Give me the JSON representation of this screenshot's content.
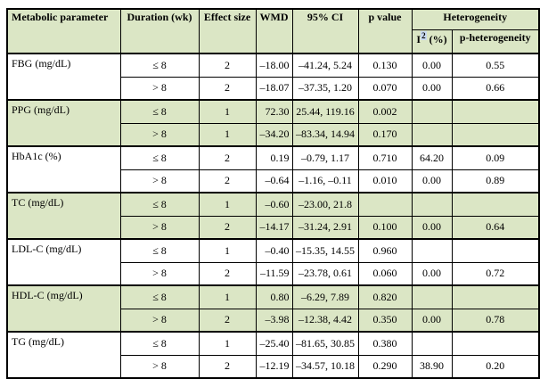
{
  "colors": {
    "header_fill": "#dbe6c5",
    "shaded_row_fill": "#dbe6c5",
    "plain_row_fill": "#ffffff",
    "border": "#000000",
    "i2_superscript_highlight": "#c9daf0"
  },
  "table": {
    "headers": {
      "parameter": "Metabolic parameter",
      "duration": "Duration (wk)",
      "effect_size": "Effect size",
      "wmd": "WMD",
      "ci": "95% CI",
      "p_value": "p value",
      "heterogeneity": "Heterogeneity",
      "i2_base": "I",
      "i2_sup": "2",
      "i2_unit": " (%)",
      "p_heterogeneity": "p-heterogeneity"
    },
    "groups": [
      {
        "parameter": "FBG (mg/dL)",
        "rows": [
          {
            "duration": "≤ 8",
            "effect_size": "2",
            "wmd": "–18.00",
            "ci": "–41.24, 5.24",
            "p_value": "0.130",
            "i2": "0.00",
            "p_heterogeneity": "0.55"
          },
          {
            "duration": "> 8",
            "effect_size": "2",
            "wmd": "–18.07",
            "ci": "–37.35, 1.20",
            "p_value": "0.070",
            "i2": "0.00",
            "p_heterogeneity": "0.66"
          }
        ]
      },
      {
        "parameter": "PPG (mg/dL)",
        "rows": [
          {
            "duration": "≤ 8",
            "effect_size": "1",
            "wmd": "72.30",
            "ci": "25.44, 119.16",
            "p_value": "0.002",
            "i2": "",
            "p_heterogeneity": ""
          },
          {
            "duration": "> 8",
            "effect_size": "1",
            "wmd": "–34.20",
            "ci": "–83.34, 14.94",
            "p_value": "0.170",
            "i2": "",
            "p_heterogeneity": ""
          }
        ]
      },
      {
        "parameter": "HbA1c (%)",
        "rows": [
          {
            "duration": "≤ 8",
            "effect_size": "2",
            "wmd": "0.19",
            "ci": "–0.79, 1.17",
            "p_value": "0.710",
            "i2": "64.20",
            "p_heterogeneity": "0.09"
          },
          {
            "duration": "> 8",
            "effect_size": "2",
            "wmd": "–0.64",
            "ci": "–1.16, –0.11",
            "p_value": "0.010",
            "i2": "0.00",
            "p_heterogeneity": "0.89"
          }
        ]
      },
      {
        "parameter": "TC (mg/dL)",
        "rows": [
          {
            "duration": "≤ 8",
            "effect_size": "1",
            "wmd": "–0.60",
            "ci": "–23.00, 21.8",
            "p_value": "",
            "i2": "",
            "p_heterogeneity": ""
          },
          {
            "duration": "> 8",
            "effect_size": "2",
            "wmd": "–14.17",
            "ci": "–31.24, 2.91",
            "p_value": "0.100",
            "i2": "0.00",
            "p_heterogeneity": "0.64"
          }
        ]
      },
      {
        "parameter": "LDL-C (mg/dL)",
        "rows": [
          {
            "duration": "≤ 8",
            "effect_size": "1",
            "wmd": "–0.40",
            "ci": "–15.35, 14.55",
            "p_value": "0.960",
            "i2": "",
            "p_heterogeneity": ""
          },
          {
            "duration": "> 8",
            "effect_size": "2",
            "wmd": "–11.59",
            "ci": "–23.78, 0.61",
            "p_value": "0.060",
            "i2": "0.00",
            "p_heterogeneity": "0.72"
          }
        ]
      },
      {
        "parameter": "HDL-C (mg/dL)",
        "rows": [
          {
            "duration": "≤ 8",
            "effect_size": "1",
            "wmd": "0.80",
            "ci": "–6.29, 7.89",
            "p_value": "0.820",
            "i2": "",
            "p_heterogeneity": ""
          },
          {
            "duration": "> 8",
            "effect_size": "2",
            "wmd": "–3.98",
            "ci": "–12.38, 4.42",
            "p_value": "0.350",
            "i2": "0.00",
            "p_heterogeneity": "0.78"
          }
        ]
      },
      {
        "parameter": "TG (mg/dL)",
        "rows": [
          {
            "duration": "≤ 8",
            "effect_size": "1",
            "wmd": "–25.40",
            "ci": "–81.65, 30.85",
            "p_value": "0.380",
            "i2": "",
            "p_heterogeneity": ""
          },
          {
            "duration": "> 8",
            "effect_size": "2",
            "wmd": "–12.19",
            "ci": "–34.57, 10.18",
            "p_value": "0.290",
            "i2": "38.90",
            "p_heterogeneity": "0.20"
          }
        ]
      }
    ]
  }
}
